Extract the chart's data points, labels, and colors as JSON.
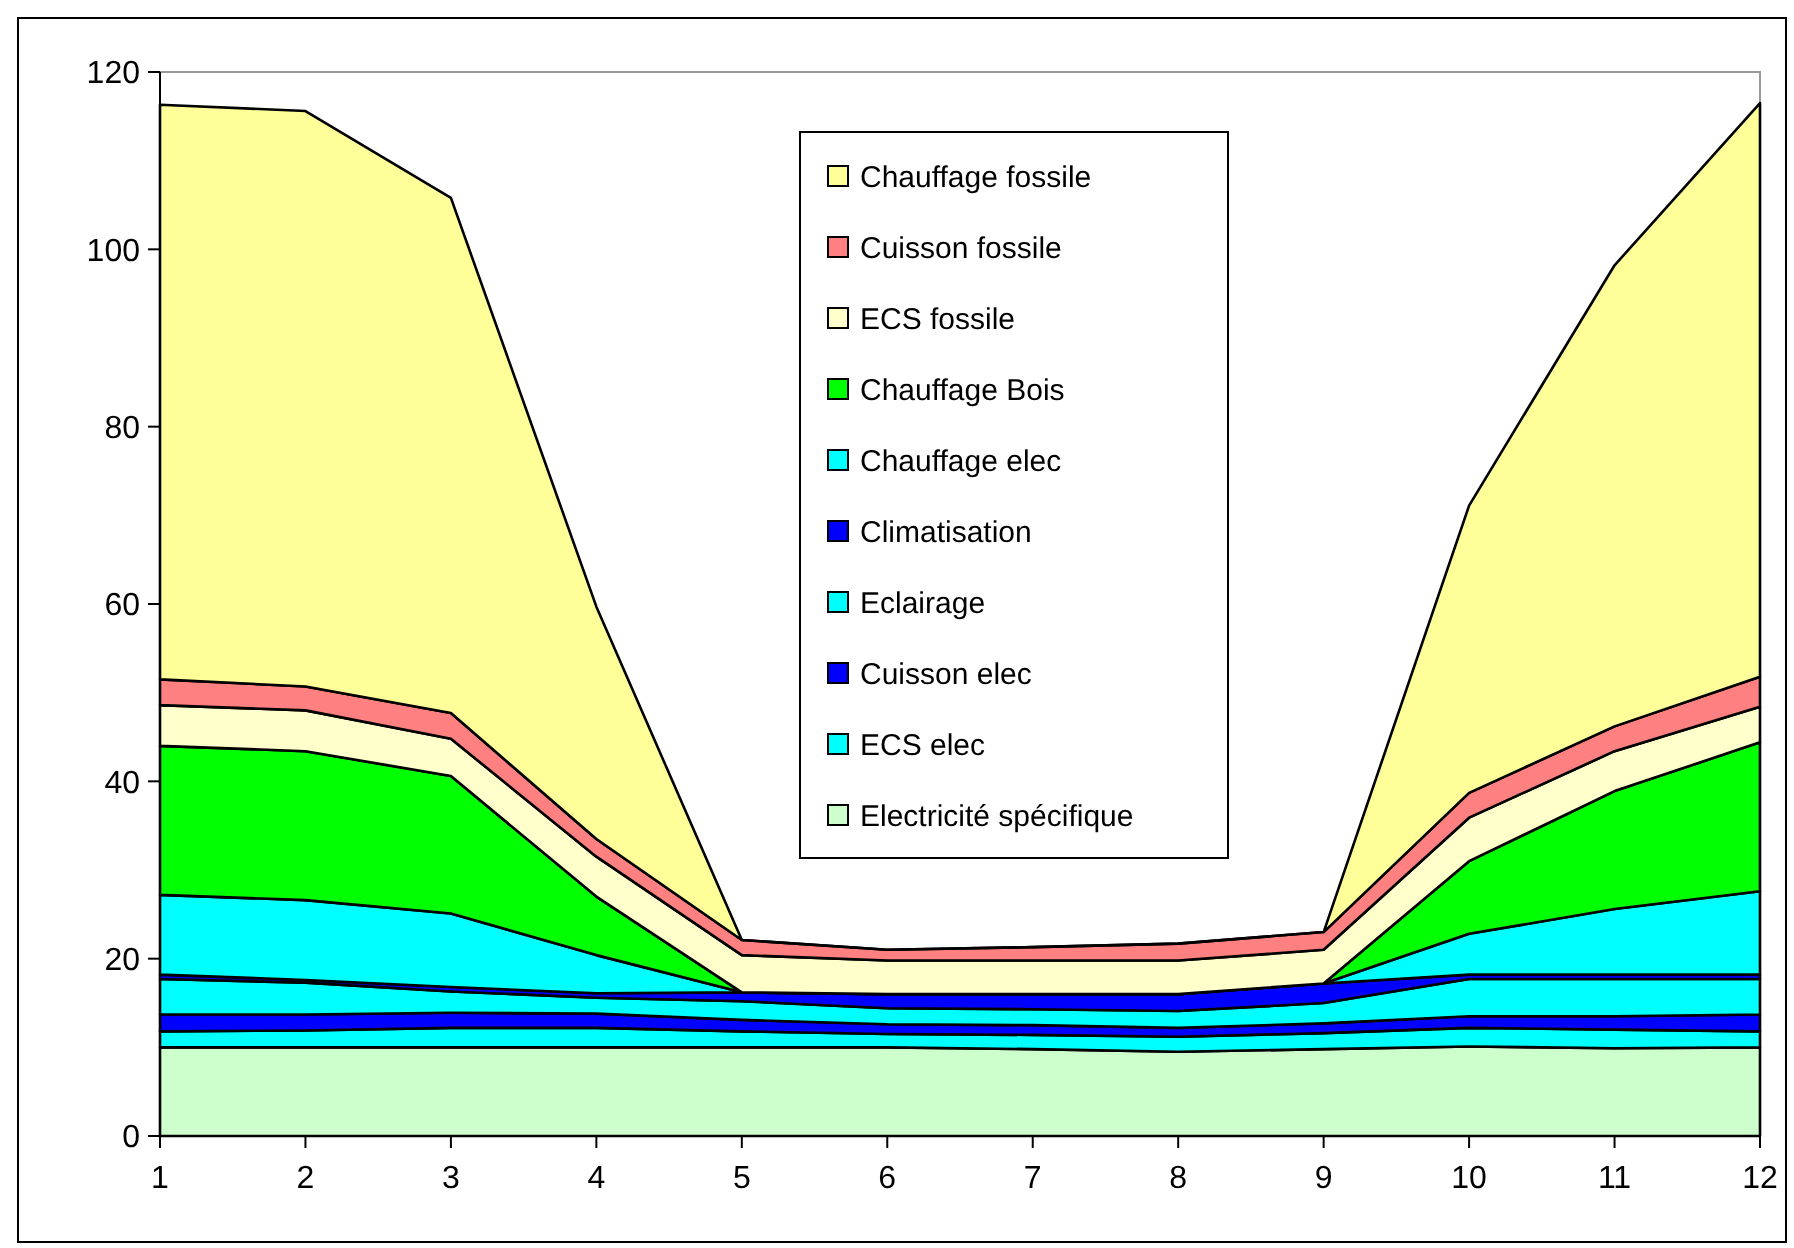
{
  "chart_data": {
    "type": "area",
    "stacked": true,
    "x": [
      1,
      2,
      3,
      4,
      5,
      6,
      7,
      8,
      9,
      10,
      11,
      12
    ],
    "xlim": [
      1,
      12
    ],
    "xticks": [
      1,
      2,
      3,
      4,
      5,
      6,
      7,
      8,
      9,
      10,
      11,
      12
    ],
    "ylim": [
      0,
      120
    ],
    "yticks": [
      0,
      20,
      40,
      60,
      80,
      100,
      120
    ],
    "grid": false,
    "legend": "top",
    "series": [
      {
        "name": "Electricité spécifique",
        "color": "#ccffcc",
        "values": [
          10,
          10,
          10,
          10,
          10,
          10,
          9.8,
          9.5,
          9.8,
          10.1,
          9.9,
          10
        ]
      },
      {
        "name": "ECS elec",
        "color": "#00ffff",
        "values": [
          1.8,
          1.9,
          2.2,
          2.2,
          1.8,
          1.5,
          1.6,
          1.7,
          1.8,
          2.1,
          2.1,
          1.8
        ]
      },
      {
        "name": "Cuisson elec",
        "color": "#0000ff",
        "values": [
          1.9,
          1.8,
          1.7,
          1.6,
          1.3,
          1.1,
          1.1,
          1.0,
          1.1,
          1.3,
          1.5,
          1.9
        ]
      },
      {
        "name": "Eclairage",
        "color": "#00ffff",
        "values": [
          4.0,
          3.6,
          2.4,
          1.8,
          2.1,
          1.8,
          1.8,
          1.9,
          2.3,
          4.2,
          4.2,
          4.0
        ]
      },
      {
        "name": "Climatisation",
        "color": "#0000ff",
        "values": [
          0.5,
          0.3,
          0.5,
          0.5,
          1.0,
          1.6,
          1.7,
          1.9,
          2.2,
          0.5,
          0.5,
          0.5
        ]
      },
      {
        "name": "Chauffage elec",
        "color": "#00ffff",
        "values": [
          9.0,
          9.0,
          8.3,
          4.3,
          0,
          0,
          0,
          0,
          0,
          4.6,
          7.4,
          9.4
        ]
      },
      {
        "name": "Chauffage Bois",
        "color": "#00ff00",
        "values": [
          16.8,
          16.8,
          15.5,
          6.6,
          0,
          0,
          0,
          0,
          0,
          8.2,
          13.3,
          16.8
        ]
      },
      {
        "name": "ECS fossile",
        "color": "#ffffcc",
        "values": [
          4.6,
          4.6,
          4.2,
          4.5,
          4.2,
          3.8,
          3.8,
          3.8,
          3.8,
          4.9,
          4.5,
          4.0
        ]
      },
      {
        "name": "Cuisson fossile",
        "color": "#ff8080",
        "values": [
          2.9,
          2.7,
          2.9,
          2.0,
          1.7,
          1.2,
          1.5,
          1.9,
          2.0,
          2.8,
          2.8,
          3.4
        ]
      },
      {
        "name": "Chauffage fossile",
        "color": "#ffff99",
        "values": [
          64.8,
          64.9,
          58.1,
          26.2,
          0,
          0,
          0,
          0,
          0,
          32.4,
          52.0,
          64.7
        ]
      }
    ]
  }
}
